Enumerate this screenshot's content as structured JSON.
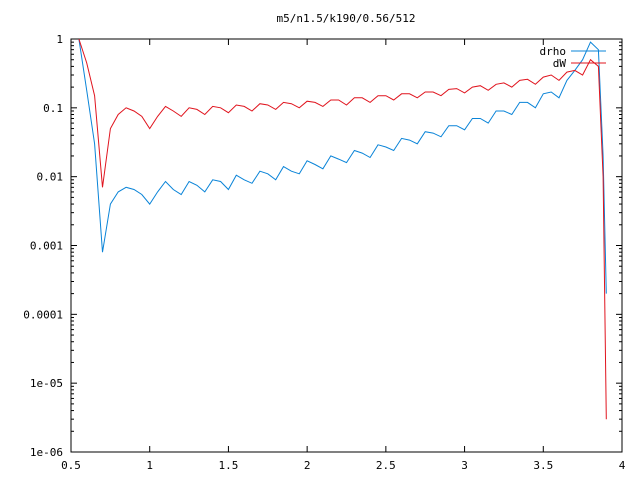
{
  "chart_data": {
    "type": "line",
    "title": "m5/n1.5/k190/0.56/512",
    "xlabel": "",
    "ylabel": "",
    "xlim": [
      0.5,
      4
    ],
    "ylim": [
      1e-06,
      1
    ],
    "yscale": "log",
    "grid": false,
    "legend_position": "top-right",
    "x_ticks": [
      0.5,
      1,
      1.5,
      2,
      2.5,
      3,
      3.5,
      4
    ],
    "x_tick_labels": [
      "0.5",
      "1",
      "1.5",
      "2",
      "2.5",
      "3",
      "3.5",
      "4"
    ],
    "y_ticks": [
      1e-06,
      1e-05,
      0.0001,
      0.001,
      0.01,
      0.1,
      1
    ],
    "y_tick_labels": [
      "1e-06",
      "1e-05",
      "0.0001",
      "0.001",
      "0.01",
      "0.1",
      "1"
    ],
    "series": [
      {
        "name": "drho",
        "color": "#0a84d8",
        "x": [
          0.55,
          0.6,
          0.65,
          0.7,
          0.75,
          0.8,
          0.85,
          0.9,
          0.95,
          1.0,
          1.05,
          1.1,
          1.15,
          1.2,
          1.25,
          1.3,
          1.35,
          1.4,
          1.45,
          1.5,
          1.55,
          1.6,
          1.65,
          1.7,
          1.75,
          1.8,
          1.85,
          1.9,
          1.95,
          2.0,
          2.05,
          2.1,
          2.15,
          2.2,
          2.25,
          2.3,
          2.35,
          2.4,
          2.45,
          2.5,
          2.55,
          2.6,
          2.65,
          2.7,
          2.75,
          2.8,
          2.85,
          2.9,
          2.95,
          3.0,
          3.05,
          3.1,
          3.15,
          3.2,
          3.25,
          3.3,
          3.35,
          3.4,
          3.45,
          3.5,
          3.55,
          3.6,
          3.65,
          3.7,
          3.75,
          3.8,
          3.85,
          3.88,
          3.9
        ],
        "y": [
          1.0,
          0.18,
          0.03,
          0.0008,
          0.004,
          0.006,
          0.007,
          0.0065,
          0.0055,
          0.004,
          0.006,
          0.0085,
          0.0065,
          0.0055,
          0.0085,
          0.0075,
          0.006,
          0.009,
          0.0085,
          0.0065,
          0.0105,
          0.009,
          0.008,
          0.012,
          0.011,
          0.009,
          0.014,
          0.012,
          0.011,
          0.017,
          0.015,
          0.013,
          0.02,
          0.018,
          0.016,
          0.024,
          0.022,
          0.019,
          0.029,
          0.027,
          0.024,
          0.036,
          0.034,
          0.03,
          0.045,
          0.043,
          0.038,
          0.055,
          0.055,
          0.048,
          0.07,
          0.07,
          0.06,
          0.09,
          0.09,
          0.08,
          0.12,
          0.12,
          0.1,
          0.16,
          0.17,
          0.14,
          0.25,
          0.35,
          0.5,
          0.9,
          0.7,
          0.02,
          0.0002
        ]
      },
      {
        "name": "dW",
        "color": "#e0141e",
        "x": [
          0.55,
          0.6,
          0.65,
          0.7,
          0.75,
          0.8,
          0.85,
          0.9,
          0.95,
          1.0,
          1.05,
          1.1,
          1.15,
          1.2,
          1.25,
          1.3,
          1.35,
          1.4,
          1.45,
          1.5,
          1.55,
          1.6,
          1.65,
          1.7,
          1.75,
          1.8,
          1.85,
          1.9,
          1.95,
          2.0,
          2.05,
          2.1,
          2.15,
          2.2,
          2.25,
          2.3,
          2.35,
          2.4,
          2.45,
          2.5,
          2.55,
          2.6,
          2.65,
          2.7,
          2.75,
          2.8,
          2.85,
          2.9,
          2.95,
          3.0,
          3.05,
          3.1,
          3.15,
          3.2,
          3.25,
          3.3,
          3.35,
          3.4,
          3.45,
          3.5,
          3.55,
          3.6,
          3.65,
          3.7,
          3.75,
          3.8,
          3.85,
          3.88,
          3.9
        ],
        "y": [
          1.0,
          0.45,
          0.15,
          0.007,
          0.05,
          0.08,
          0.1,
          0.09,
          0.075,
          0.05,
          0.075,
          0.105,
          0.09,
          0.075,
          0.1,
          0.095,
          0.08,
          0.105,
          0.1,
          0.085,
          0.11,
          0.105,
          0.09,
          0.115,
          0.11,
          0.095,
          0.12,
          0.115,
          0.1,
          0.125,
          0.12,
          0.105,
          0.13,
          0.13,
          0.11,
          0.14,
          0.14,
          0.12,
          0.15,
          0.15,
          0.13,
          0.16,
          0.16,
          0.14,
          0.17,
          0.17,
          0.15,
          0.185,
          0.19,
          0.165,
          0.2,
          0.21,
          0.18,
          0.22,
          0.23,
          0.2,
          0.25,
          0.26,
          0.22,
          0.28,
          0.3,
          0.25,
          0.33,
          0.35,
          0.3,
          0.5,
          0.4,
          0.01,
          3e-06
        ]
      }
    ]
  }
}
